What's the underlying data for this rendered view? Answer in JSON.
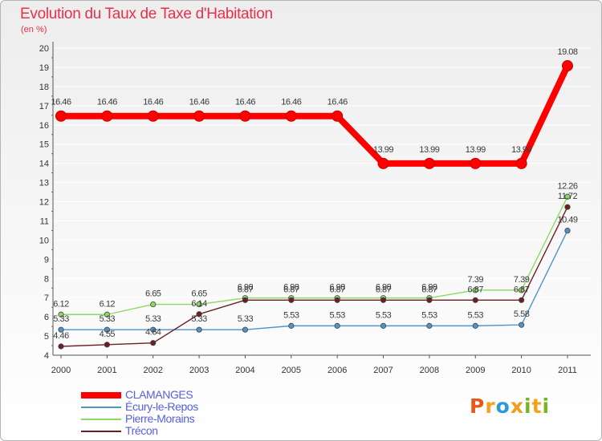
{
  "header": {
    "title": "Evolution du Taux de Taxe d'Habitation",
    "subtitle": "(en %)"
  },
  "brand": {
    "logo_letters": [
      "P",
      "r",
      "o",
      "x",
      "i",
      "t",
      "i"
    ],
    "logo_colors": [
      "#e85a1a",
      "#f3a21a",
      "#2a9ad9",
      "#f39c1a",
      "#7ab51d",
      "#f3a21a",
      "#7ab51d"
    ]
  },
  "colors": {
    "axis": "#555555",
    "grid": "#ffffff",
    "tick_marks": "#e8304a"
  },
  "chart_data": {
    "type": "line",
    "title": "Evolution du Taux de Taxe d'Habitation",
    "subtitle": "(en %)",
    "xlabel": "",
    "ylabel": "",
    "x": [
      "2000",
      "2001",
      "2002",
      "2003",
      "2004",
      "2005",
      "2006",
      "2007",
      "2008",
      "2009",
      "2010",
      "2011"
    ],
    "ylim": [
      4,
      20
    ],
    "yticks": [
      "4",
      "5",
      "6",
      "7",
      "8",
      "9",
      "10",
      "11",
      "12",
      "13",
      "14",
      "15",
      "16",
      "17",
      "18",
      "19",
      "20"
    ],
    "grid": "horizontal",
    "legend_position": "bottom-left",
    "series": [
      {
        "name": "CLAMANGES",
        "color": "#ff0000",
        "values": [
          16.46,
          16.46,
          16.46,
          16.46,
          16.46,
          16.46,
          16.46,
          13.99,
          13.99,
          13.99,
          13.99,
          19.08
        ],
        "labels": [
          "16.46",
          "16.46",
          "16.46",
          "16.46",
          "16.46",
          "16.46",
          "16.46",
          "13.99",
          "13.99",
          "13.99",
          "13.99",
          "19.08"
        ]
      },
      {
        "name": "Écury-le-Repos",
        "color": "#4f94c9",
        "values": [
          5.33,
          5.33,
          5.33,
          5.33,
          5.33,
          5.53,
          5.53,
          5.53,
          5.53,
          5.53,
          5.58,
          10.49
        ],
        "labels": [
          "5.33",
          "5.33",
          "5.33",
          "5.33",
          "5.33",
          "5.53",
          "5.53",
          "5.53",
          "5.53",
          "5.53",
          "5.58",
          "10.49"
        ]
      },
      {
        "name": "Pierre-Morains",
        "color": "#8bdb62",
        "values": [
          6.12,
          6.12,
          6.65,
          6.65,
          6.98,
          6.98,
          6.98,
          6.98,
          6.98,
          7.39,
          7.39,
          12.26
        ],
        "labels": [
          "6.12",
          "6.12",
          "6.65",
          "6.65",
          "6.98",
          "6.98",
          "6.98",
          "6.98",
          "6.98",
          "7.39",
          "7.39",
          "12.26"
        ]
      },
      {
        "name": "Trécon",
        "color": "#6b1f24",
        "values": [
          4.46,
          4.55,
          4.64,
          6.14,
          6.87,
          6.87,
          6.87,
          6.87,
          6.87,
          6.87,
          6.87,
          11.72
        ],
        "labels": [
          "4.46",
          "4.55",
          "4.64",
          "6.14",
          "6.87",
          "6.87",
          "6.87",
          "6.87",
          "6.87",
          "6.87",
          "6.87",
          "11.72"
        ]
      }
    ]
  }
}
